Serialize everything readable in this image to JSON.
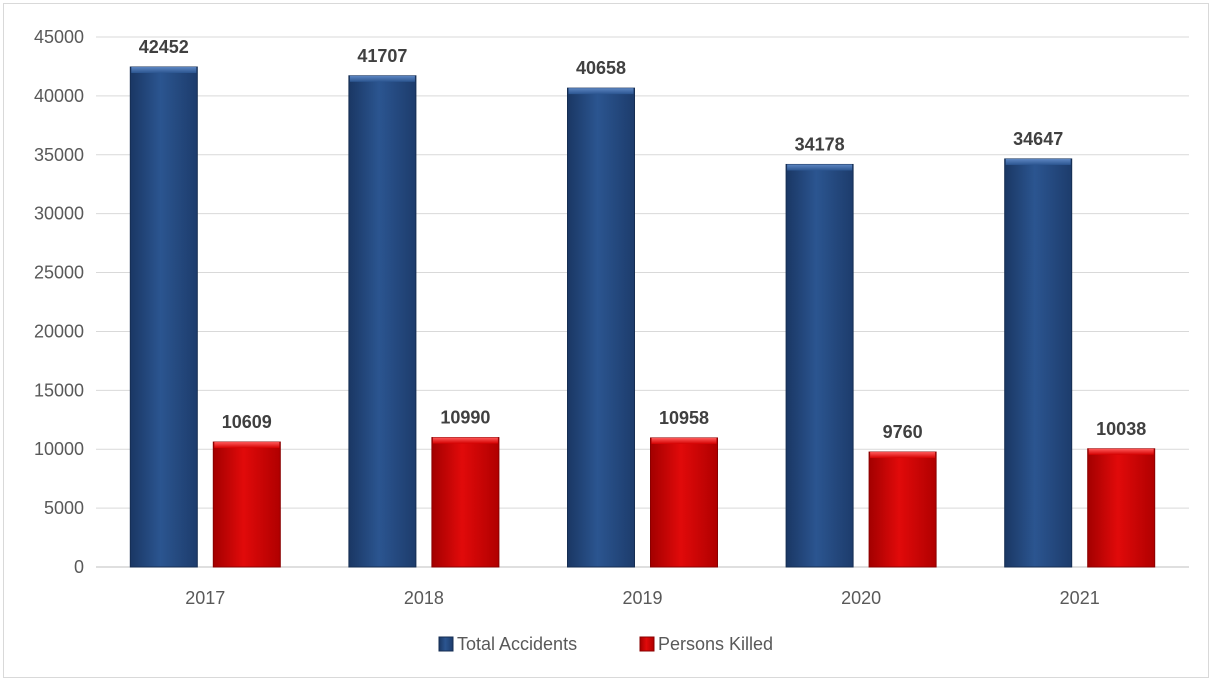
{
  "chart_data": {
    "type": "bar",
    "categories": [
      "2017",
      "2018",
      "2019",
      "2020",
      "2021"
    ],
    "series": [
      {
        "name": "Total Accidents",
        "values": [
          42452,
          41707,
          40658,
          34178,
          34647
        ],
        "color": "#244a82"
      },
      {
        "name": "Persons Killed",
        "values": [
          10609,
          10990,
          10958,
          9760,
          10038
        ],
        "color": "#d40000"
      }
    ],
    "ylim": [
      0,
      45000
    ],
    "yticks": [
      "0",
      "5000",
      "10000",
      "15000",
      "20000",
      "25000",
      "30000",
      "35000",
      "40000",
      "45000"
    ],
    "grid": true,
    "legend_position": "bottom",
    "data_labels": true
  }
}
